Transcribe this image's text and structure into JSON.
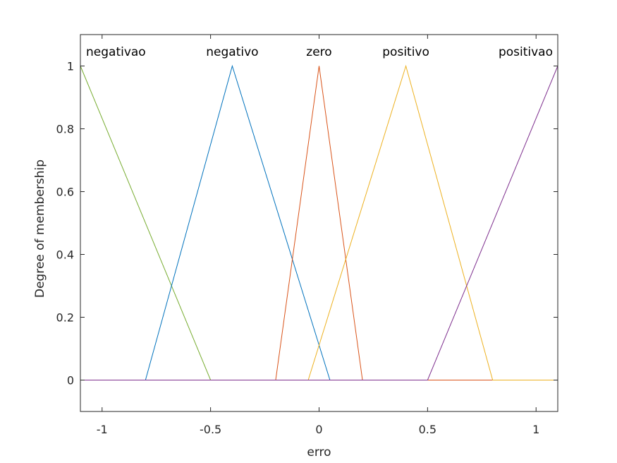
{
  "chart_data": {
    "type": "line",
    "title": "",
    "xlabel": "erro",
    "ylabel": "Degree of membership",
    "xlim": [
      -1.1,
      1.1
    ],
    "ylim": [
      -0.1,
      1.1
    ],
    "x_ticks": [
      -1,
      -0.5,
      0,
      0.5,
      1
    ],
    "x_tick_labels": [
      "-1",
      "-0.5",
      "0",
      "0.5",
      "1"
    ],
    "y_ticks": [
      0,
      0.2,
      0.4,
      0.6,
      0.8,
      1
    ],
    "y_tick_labels": [
      "0",
      "0.2",
      "0.4",
      "0.6",
      "0.8",
      "1"
    ],
    "grid": false,
    "series": [
      {
        "name": "negativao",
        "color": "#77ac30",
        "x": [
          -1.1,
          -0.5,
          1.1
        ],
        "y": [
          1,
          0,
          0
        ]
      },
      {
        "name": "negativo",
        "color": "#0072bd",
        "x": [
          -1.1,
          -0.8,
          -0.4,
          0.05,
          1.1
        ],
        "y": [
          0,
          0,
          1,
          0,
          0
        ]
      },
      {
        "name": "zero",
        "color": "#d95319",
        "x": [
          -1.1,
          -0.2,
          0,
          0.2,
          1.1
        ],
        "y": [
          0,
          0,
          1,
          0,
          0
        ]
      },
      {
        "name": "positivo",
        "color": "#edb120",
        "x": [
          -1.1,
          -0.05,
          0.4,
          0.8,
          1.1
        ],
        "y": [
          0,
          0,
          1,
          0,
          0
        ]
      },
      {
        "name": "positivao",
        "color": "#7e2f8e",
        "x": [
          -1.1,
          0.5,
          1.1
        ],
        "y": [
          0,
          0,
          1
        ]
      }
    ]
  }
}
